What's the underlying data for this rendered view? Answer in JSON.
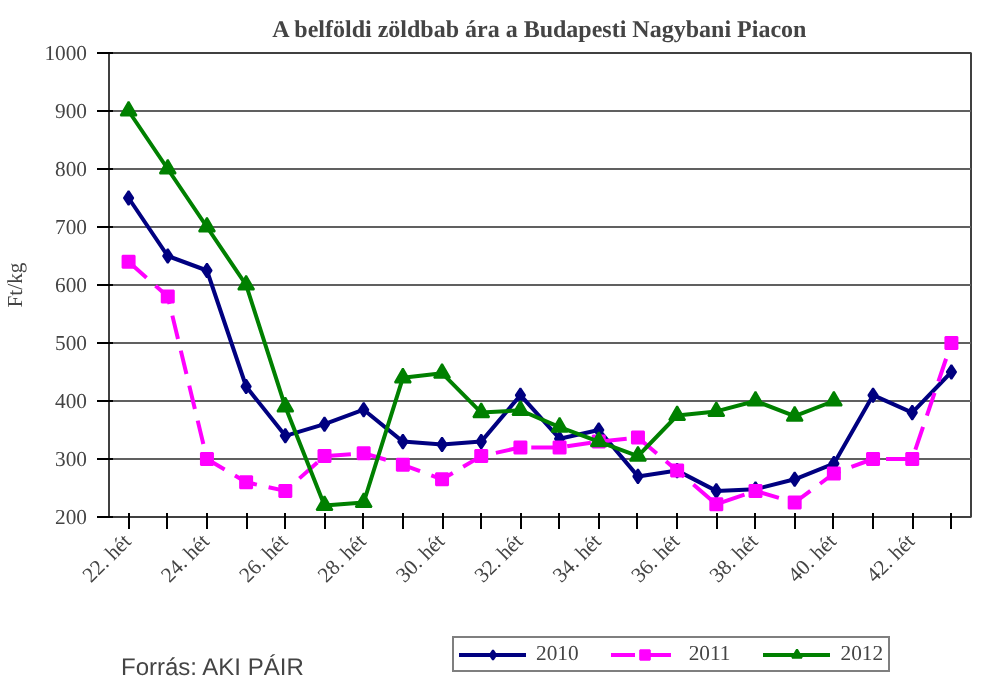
{
  "chart_data": {
    "type": "line",
    "title": "A belföldi zöldbab ára a Budapesti Nagybani Piacon",
    "ylabel": "Ft/kg",
    "categories": [
      "22. hét",
      null,
      "24. hét",
      null,
      "26. hét",
      null,
      "28. hét",
      null,
      "30. hét",
      null,
      "32. hét",
      null,
      "34. hét",
      null,
      "36. hét",
      null,
      "38. hét",
      null,
      "40. hét",
      null,
      "42. hét",
      null
    ],
    "series": [
      {
        "name": "2010",
        "color": "#000080",
        "marker": "diamond",
        "line_style": "solid",
        "values": [
          750,
          650,
          625,
          425,
          340,
          360,
          385,
          330,
          325,
          330,
          410,
          335,
          350,
          270,
          280,
          245,
          248,
          265,
          292,
          410,
          380,
          450
        ]
      },
      {
        "name": "2011",
        "color": "#ff00ff",
        "marker": "square",
        "line_style": "dashed",
        "values": [
          640,
          580,
          300,
          260,
          245,
          305,
          310,
          290,
          265,
          305,
          320,
          320,
          330,
          337,
          280,
          222,
          245,
          225,
          275,
          300,
          300,
          500
        ]
      },
      {
        "name": "2012",
        "color": "#008000",
        "marker": "triangle",
        "line_style": "solid",
        "values": [
          900,
          800,
          700,
          600,
          390,
          220,
          225,
          440,
          448,
          380,
          384,
          355,
          330,
          305,
          375,
          382,
          400,
          374,
          400,
          null,
          null,
          null
        ]
      }
    ],
    "ylim": [
      200,
      1000
    ],
    "yticks": [
      200,
      300,
      400,
      500,
      600,
      700,
      800,
      900,
      1000
    ],
    "grid": "y",
    "legend": "bottom",
    "annotations": [
      "Forrás: AKI PÁIR"
    ]
  }
}
